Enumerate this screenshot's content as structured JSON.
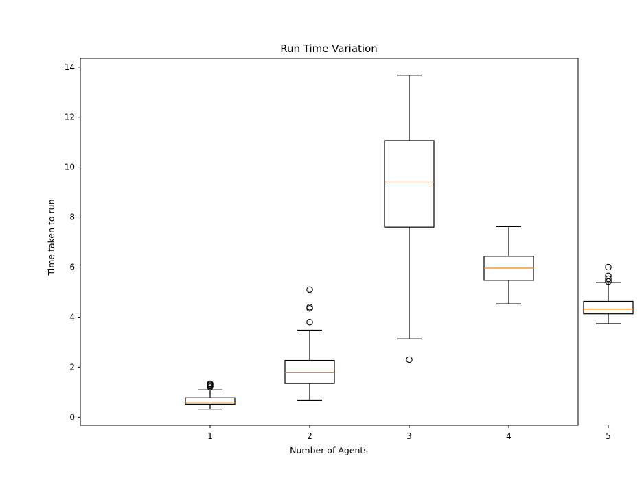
{
  "chart_data": {
    "type": "box",
    "title": "Run Time Variation",
    "xlabel": "Number of Agents",
    "ylabel": "Time taken to run",
    "categories": [
      "1",
      "2",
      "3",
      "4",
      "5"
    ],
    "ylim": [
      -0.32,
      14.35
    ],
    "yticks": [
      0,
      2,
      4,
      6,
      8,
      10,
      12,
      14
    ],
    "grid": false,
    "boxes": [
      {
        "category": "1",
        "whislo": 0.32,
        "q1": 0.52,
        "med": 0.58,
        "q3": 0.77,
        "whishi": 1.1,
        "fliers": [
          1.22,
          1.26,
          1.3,
          1.34
        ]
      },
      {
        "category": "2",
        "whislo": 0.68,
        "q1": 1.35,
        "med": 1.78,
        "q3": 2.27,
        "whishi": 3.48,
        "fliers": [
          3.8,
          4.35,
          4.4,
          5.1
        ]
      },
      {
        "category": "3",
        "whislo": 3.13,
        "q1": 7.6,
        "med": 9.4,
        "q3": 11.06,
        "whishi": 13.67,
        "fliers": [
          2.3
        ]
      },
      {
        "category": "4",
        "whislo": 4.53,
        "q1": 5.47,
        "med": 5.96,
        "q3": 6.43,
        "whishi": 7.62,
        "fliers": []
      },
      {
        "category": "5",
        "whislo": 3.74,
        "q1": 4.13,
        "med": 4.32,
        "q3": 4.63,
        "whishi": 5.38,
        "fliers": [
          5.42,
          5.53,
          5.65,
          6.0
        ]
      }
    ],
    "colors": {
      "median": "#ff7f0e",
      "box": "#000000"
    }
  }
}
